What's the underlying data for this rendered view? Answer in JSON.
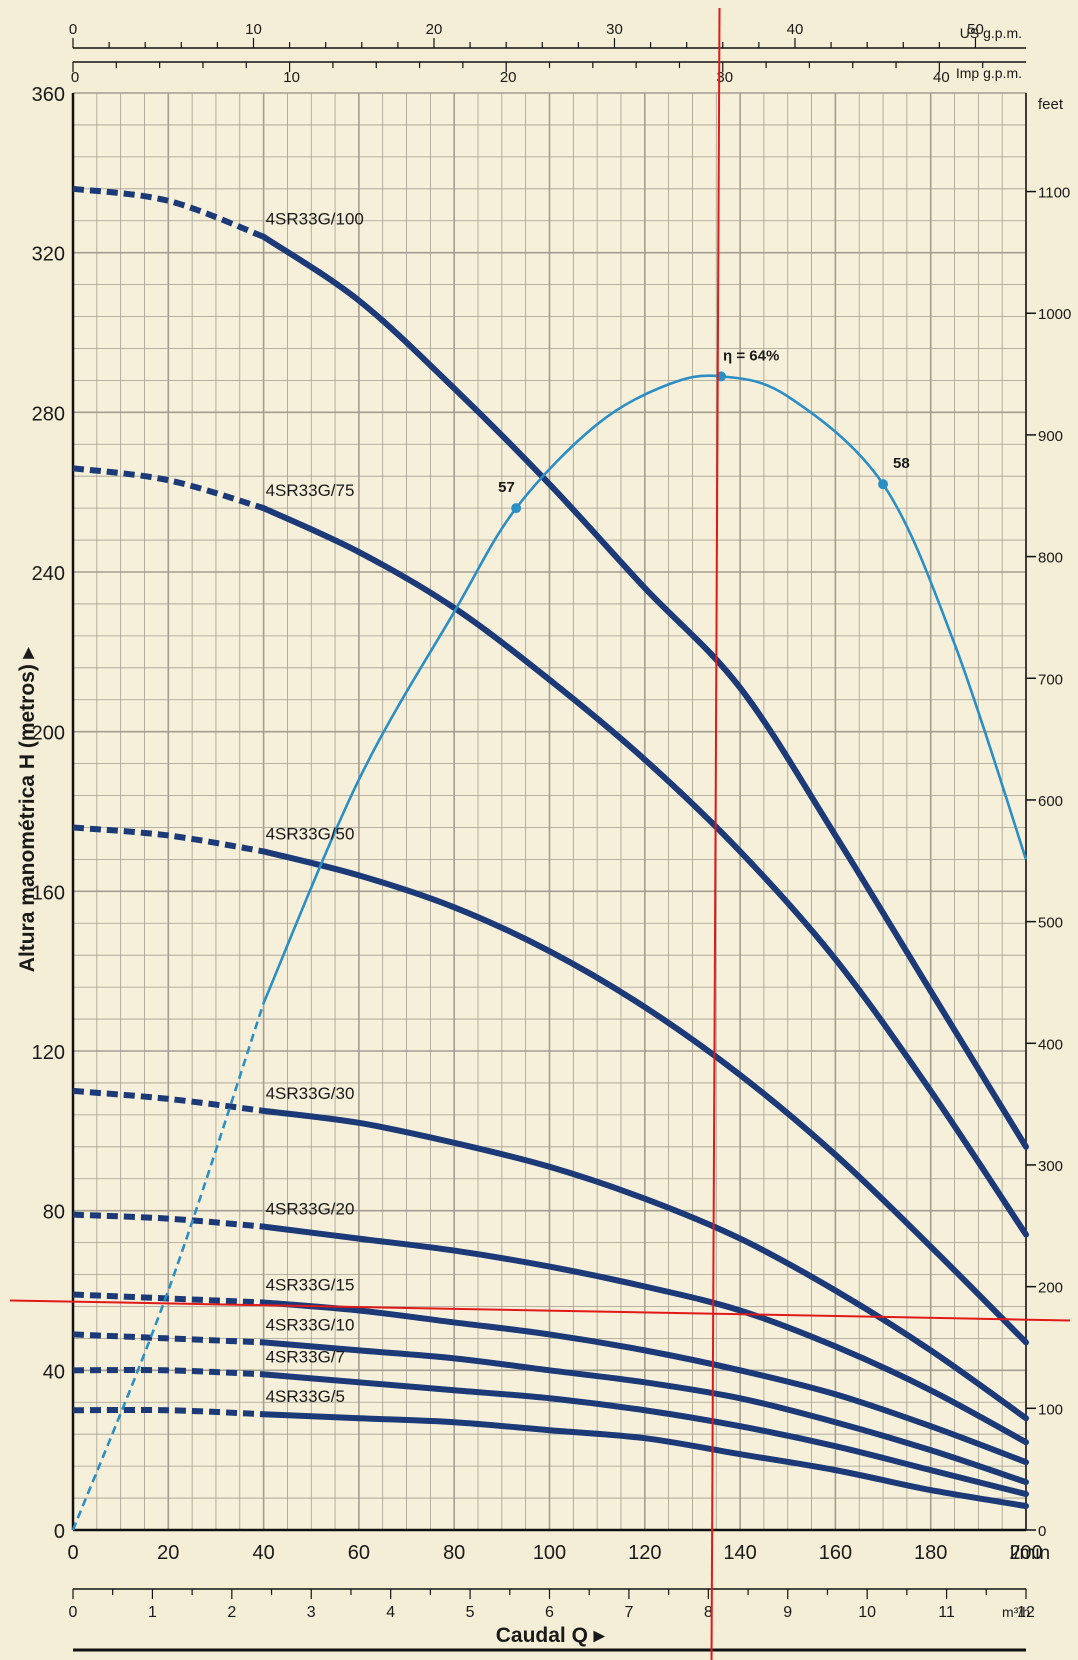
{
  "chart_data": {
    "type": "line",
    "axes": {
      "flow_lmin": {
        "range": [
          0,
          200
        ],
        "ticks": [
          "0",
          "20",
          "40",
          "60",
          "80",
          "100",
          "120",
          "140",
          "160",
          "180",
          "200"
        ],
        "unit": "l/min"
      },
      "flow_m3h": {
        "range": [
          0,
          12
        ],
        "ticks": [
          "0",
          "1",
          "2",
          "3",
          "4",
          "5",
          "6",
          "7",
          "8",
          "9",
          "10",
          "11",
          "12"
        ],
        "unit": "m³/h"
      },
      "us_gpm": {
        "range": [
          0,
          52.8
        ],
        "ticks": [
          "0",
          "10",
          "20",
          "30",
          "40",
          "50"
        ],
        "unit": "US g.p.m."
      },
      "imp_gpm": {
        "range": [
          0,
          44
        ],
        "ticks": [
          "0",
          "10",
          "20",
          "30",
          "40"
        ],
        "unit": "Imp g.p.m."
      },
      "head_m": {
        "range": [
          0,
          360
        ],
        "ticks": [
          "0",
          "40",
          "80",
          "120",
          "160",
          "200",
          "240",
          "280",
          "320",
          "360"
        ],
        "ylabel": "Altura manométrica H (metros)"
      },
      "head_ft": {
        "range": [
          0,
          1181
        ],
        "ticks": [
          "0",
          "100",
          "200",
          "300",
          "400",
          "500",
          "600",
          "700",
          "800",
          "900",
          "1000",
          "1100"
        ],
        "unit": "feet"
      },
      "grid": true
    },
    "xlabel": "Caudal Q",
    "series": [
      {
        "name": "4SR33G/100",
        "dashed_to": 40,
        "x": [
          0,
          20,
          40,
          60,
          80,
          100,
          120,
          140,
          160,
          180,
          200
        ],
        "y": [
          336,
          333,
          324,
          308,
          286,
          262,
          236,
          211,
          174,
          135,
          96
        ]
      },
      {
        "name": "4SR33G/75",
        "dashed_to": 40,
        "x": [
          0,
          20,
          40,
          60,
          80,
          100,
          120,
          140,
          160,
          180,
          200
        ],
        "y": [
          266,
          263,
          256,
          245,
          231,
          213,
          193,
          170,
          143,
          110,
          74
        ]
      },
      {
        "name": "4SR33G/50",
        "dashed_to": 40,
        "x": [
          0,
          20,
          40,
          60,
          80,
          100,
          120,
          140,
          160,
          180,
          200
        ],
        "y": [
          176,
          174,
          170,
          164,
          156,
          145,
          131,
          114,
          94,
          71,
          47
        ]
      },
      {
        "name": "4SR33G/30",
        "dashed_to": 40,
        "x": [
          0,
          20,
          40,
          60,
          80,
          100,
          120,
          140,
          160,
          180,
          200
        ],
        "y": [
          110,
          108,
          105,
          102,
          97,
          91,
          83,
          73,
          60,
          45,
          28
        ]
      },
      {
        "name": "4SR33G/20",
        "dashed_to": 40,
        "x": [
          0,
          20,
          40,
          60,
          80,
          100,
          120,
          140,
          160,
          180,
          200
        ],
        "y": [
          79,
          78,
          76,
          73,
          70,
          66,
          61,
          55,
          46,
          35,
          22
        ]
      },
      {
        "name": "4SR33G/15",
        "dashed_to": 40,
        "x": [
          0,
          20,
          40,
          60,
          80,
          100,
          120,
          140,
          160,
          180,
          200
        ],
        "y": [
          59,
          58,
          57,
          55,
          52,
          49,
          45,
          40,
          34,
          26,
          17
        ]
      },
      {
        "name": "4SR33G/10",
        "dashed_to": 40,
        "x": [
          0,
          20,
          40,
          60,
          80,
          100,
          120,
          140,
          160,
          180,
          200
        ],
        "y": [
          49,
          48,
          47,
          45,
          43,
          40,
          37,
          33,
          27,
          20,
          12
        ]
      },
      {
        "name": "4SR33G/7",
        "dashed_to": 40,
        "x": [
          0,
          20,
          40,
          60,
          80,
          100,
          120,
          140,
          160,
          180,
          200
        ],
        "y": [
          40,
          40,
          39,
          37,
          35,
          33,
          30,
          26,
          21,
          15,
          9
        ]
      },
      {
        "name": "4SR33G/5",
        "dashed_to": 40,
        "x": [
          0,
          20,
          40,
          60,
          80,
          100,
          120,
          140,
          160,
          180,
          200
        ],
        "y": [
          30,
          30,
          29,
          28,
          27,
          25,
          23,
          19,
          15,
          10,
          6
        ]
      }
    ],
    "efficiency_curve": {
      "dashed_to": 40,
      "x": [
        0,
        20,
        40,
        60,
        80,
        93,
        110,
        125,
        136,
        150,
        170,
        185,
        200
      ],
      "y": [
        0,
        60,
        132,
        188,
        230,
        256,
        277,
        287,
        289,
        284,
        262,
        222,
        168
      ],
      "points": [
        {
          "x": 93,
          "y": 256,
          "label": "57"
        },
        {
          "x": 136,
          "y": 289,
          "label": "η = 64%"
        },
        {
          "x": 170,
          "y": 262,
          "label": "58"
        }
      ]
    },
    "markers": {
      "vertical_x_lmin": 134,
      "horizontal_y_m": 55
    }
  },
  "colors": {
    "background": "#f4eed7",
    "grid": "#a39e90",
    "pump_curve": "#1c3a78",
    "efficiency_curve": "#2b8ec4",
    "marker": "#e01919"
  }
}
